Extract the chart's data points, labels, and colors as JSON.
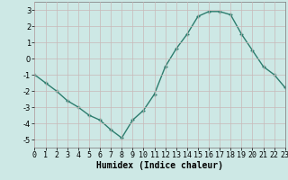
{
  "x": [
    0,
    1,
    2,
    3,
    4,
    5,
    6,
    7,
    8,
    9,
    10,
    11,
    12,
    13,
    14,
    15,
    16,
    17,
    18,
    19,
    20,
    21,
    22,
    23
  ],
  "y": [
    -1,
    -1.5,
    -2,
    -2.6,
    -3.0,
    -3.5,
    -3.8,
    -4.4,
    -4.9,
    -3.8,
    -3.2,
    -2.2,
    -0.5,
    0.6,
    1.5,
    2.6,
    2.9,
    2.9,
    2.7,
    1.5,
    0.5,
    -0.5,
    -1.0,
    -1.8
  ],
  "line_color": "#2d7d6e",
  "marker": "+",
  "marker_size": 3.5,
  "marker_lw": 1.0,
  "xlabel": "Humidex (Indice chaleur)",
  "xlim": [
    0,
    23
  ],
  "ylim": [
    -5.5,
    3.5
  ],
  "yticks": [
    -5,
    -4,
    -3,
    -2,
    -1,
    0,
    1,
    2,
    3
  ],
  "xticks": [
    0,
    1,
    2,
    3,
    4,
    5,
    6,
    7,
    8,
    9,
    10,
    11,
    12,
    13,
    14,
    15,
    16,
    17,
    18,
    19,
    20,
    21,
    22,
    23
  ],
  "bg_color": "#cde8e5",
  "grid_color": "#c8b8b8",
  "line_width": 1.0,
  "xlabel_fontsize": 7,
  "tick_fontsize": 6
}
